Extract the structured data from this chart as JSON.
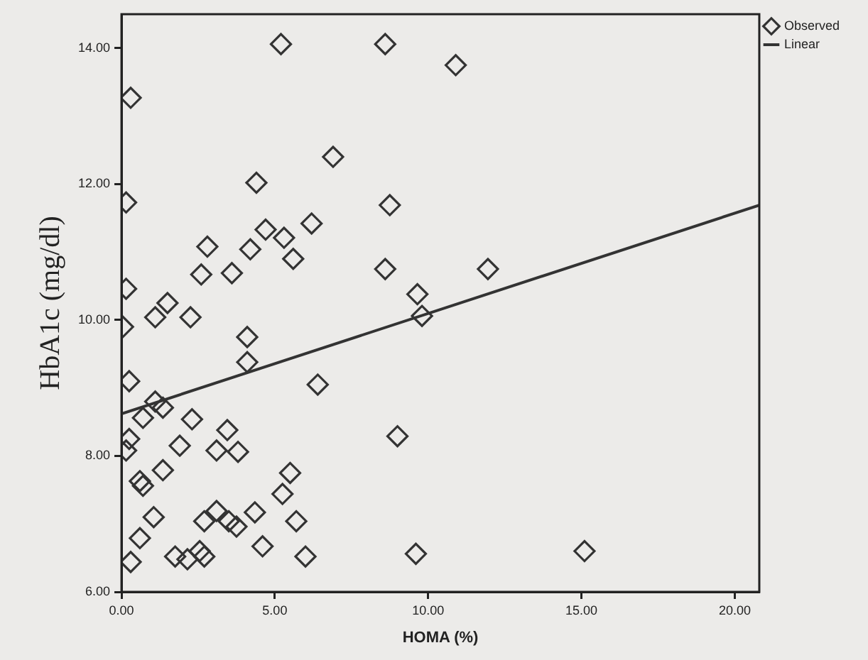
{
  "chart_data": {
    "type": "scatter",
    "xlabel": "HOMA (%)",
    "ylabel": "HbA1c (mg/dl)",
    "xlim": [
      0,
      20.8
    ],
    "ylim": [
      6,
      14.5
    ],
    "xticks": [
      {
        "value": 0,
        "label": "0.00"
      },
      {
        "value": 5,
        "label": "5.00"
      },
      {
        "value": 10,
        "label": "10.00"
      },
      {
        "value": 15,
        "label": "15.00"
      },
      {
        "value": 20,
        "label": "20.00"
      }
    ],
    "yticks": [
      {
        "value": 6,
        "label": "6.00"
      },
      {
        "value": 8,
        "label": "8.00"
      },
      {
        "value": 10,
        "label": "10.00"
      },
      {
        "value": 12,
        "label": "12.00"
      },
      {
        "value": 14,
        "label": "14.00"
      }
    ],
    "grid": false,
    "legend": "top right",
    "series": [
      {
        "name": "Observed",
        "marker": "diamond",
        "color": "#333333",
        "x": [
          5.2,
          0.3,
          6.9,
          4.4,
          0.15,
          6.2,
          4.7,
          5.3,
          2.8,
          4.2,
          5.6,
          2.6,
          3.6,
          0.15,
          1.5,
          1.1,
          2.25,
          0.05,
          4.1,
          4.1,
          0.25,
          6.4,
          1.1,
          1.35,
          0.7,
          2.3,
          3.45,
          0.25,
          0.15,
          1.9,
          3.1,
          3.8,
          5.5,
          1.35,
          0.6,
          0.7,
          5.25,
          1.05,
          3.1,
          2.7,
          3.5,
          3.75,
          4.35,
          5.7,
          0.6,
          4.6,
          0.3,
          1.75,
          2.15,
          2.55,
          2.7,
          6.0,
          8.6,
          10.9,
          8.75,
          8.6,
          11.95,
          9.65,
          9.8,
          9.0,
          9.6,
          15.1
        ],
        "values": [
          14.06,
          13.27,
          12.4,
          12.02,
          11.73,
          11.42,
          11.33,
          11.21,
          11.08,
          11.04,
          10.9,
          10.67,
          10.69,
          10.46,
          10.25,
          10.04,
          10.04,
          9.9,
          9.75,
          9.38,
          9.1,
          9.05,
          8.8,
          8.71,
          8.56,
          8.54,
          8.38,
          8.25,
          8.08,
          8.15,
          8.08,
          8.06,
          7.75,
          7.79,
          7.63,
          7.56,
          7.44,
          7.1,
          7.19,
          7.04,
          7.04,
          6.96,
          7.17,
          7.04,
          6.79,
          6.67,
          6.44,
          6.52,
          6.48,
          6.6,
          6.52,
          6.52,
          14.06,
          13.75,
          11.69,
          10.75,
          10.75,
          10.38,
          10.06,
          8.29,
          6.56,
          6.6
        ]
      },
      {
        "name": "Linear",
        "type": "line",
        "marker": "none",
        "line_style": "solid",
        "color": "#333333",
        "x": [
          0,
          20.8
        ],
        "values": [
          8.62,
          11.69
        ]
      }
    ]
  }
}
